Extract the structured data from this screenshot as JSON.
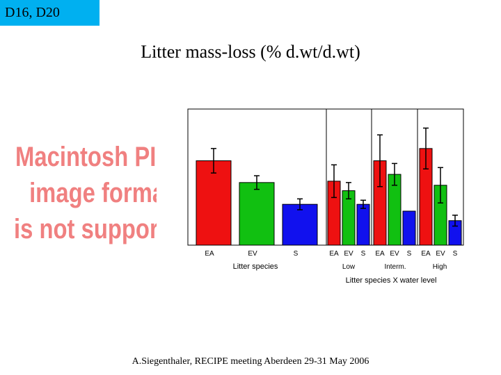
{
  "tag": "D16, D20",
  "slide_title": "Litter mass-loss (% d.wt/d.wt)",
  "placeholder": {
    "lines": [
      "Macintosh PICT",
      "image format",
      "is not supported"
    ]
  },
  "footer": "A.Siegenthaler, RECIPE meeting Aberdeen 29-31 May 2006",
  "colors": {
    "EA": "#ee1111",
    "EV": "#11c011",
    "S": "#1111ee"
  },
  "chart_data": [
    {
      "type": "bar",
      "title": "",
      "xlabel": "Litter species",
      "ylabel": "",
      "ylim": [
        0,
        100
      ],
      "categories": [
        "EA",
        "EV",
        "S"
      ],
      "values": [
        62,
        46,
        30
      ],
      "errors": [
        9,
        5,
        4
      ]
    },
    {
      "type": "bar",
      "title": "",
      "xlabel": "Litter species X water level",
      "ylabel": "",
      "ylim": [
        0,
        100
      ],
      "categories": [
        "EA",
        "EV",
        "S",
        "EA",
        "EV",
        "S",
        "EA",
        "EV",
        "S"
      ],
      "groups": [
        "Low",
        "Interm.",
        "High"
      ],
      "group_label_names": [
        "low-group-label",
        "interm-group-label",
        "high-group-label"
      ],
      "values": [
        47,
        40,
        30,
        62,
        52,
        25,
        71,
        44,
        18
      ],
      "errors": [
        12,
        6,
        3,
        19,
        8,
        0,
        15,
        13,
        4
      ]
    }
  ]
}
